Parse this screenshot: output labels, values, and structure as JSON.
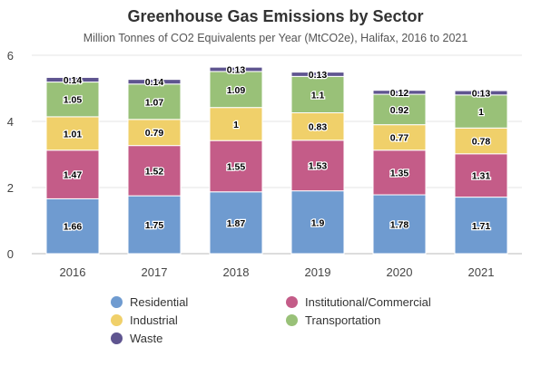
{
  "chart_data": {
    "type": "bar",
    "stacked": true,
    "title": "Greenhouse Gas Emissions by Sector",
    "subtitle": "Million Tonnes of CO2 Equivalents per Year (MtCO2e), Halifax, 2016 to 2021",
    "categories": [
      "2016",
      "2017",
      "2018",
      "2019",
      "2020",
      "2021"
    ],
    "ylim": [
      0,
      6
    ],
    "yticks": [
      "0",
      "2",
      "4",
      "6"
    ],
    "grid": true,
    "legend_position": "bottom",
    "series": [
      {
        "name": "Residential",
        "color": "#6f9bd0",
        "values": [
          1.66,
          1.75,
          1.87,
          1.9,
          1.78,
          1.71
        ]
      },
      {
        "name": "Institutional/Commercial",
        "color": "#c45c88",
        "values": [
          1.47,
          1.52,
          1.55,
          1.53,
          1.35,
          1.31
        ]
      },
      {
        "name": "Industrial",
        "color": "#f0d06a",
        "values": [
          1.01,
          0.79,
          1,
          0.83,
          0.77,
          0.78
        ]
      },
      {
        "name": "Transportation",
        "color": "#99c178",
        "values": [
          1.05,
          1.07,
          1.09,
          1.1,
          0.92,
          1
        ]
      },
      {
        "name": "Waste",
        "color": "#5f5590",
        "values": [
          0.14,
          0.14,
          0.13,
          0.13,
          0.12,
          0.13
        ]
      }
    ],
    "data_labels": [
      [
        "1.66",
        "1.75",
        "1.87",
        "1.9",
        "1.78",
        "1.71"
      ],
      [
        "1.47",
        "1.52",
        "1.55",
        "1.53",
        "1.35",
        "1.31"
      ],
      [
        "1.01",
        "0.79",
        "1",
        "0.83",
        "0.77",
        "0.78"
      ],
      [
        "1.05",
        "1.07",
        "1.09",
        "1.1",
        "0.92",
        "1"
      ],
      [
        "0.14",
        "0.14",
        "0.13",
        "0.13",
        "0.12",
        "0.13"
      ]
    ],
    "legend_order": [
      0,
      1,
      2,
      3,
      4
    ]
  }
}
